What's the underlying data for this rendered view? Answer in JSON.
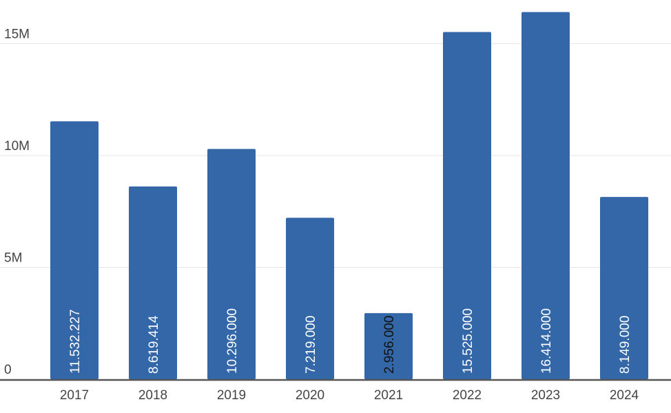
{
  "chart_data": {
    "type": "bar",
    "title": "",
    "xlabel": "",
    "ylabel": "",
    "categories": [
      "2017",
      "2018",
      "2019",
      "2020",
      "2021",
      "2022",
      "2023",
      "2024"
    ],
    "values": [
      11532227,
      8619414,
      10296000,
      7219000,
      2956000,
      15525000,
      16414000,
      8149000
    ],
    "data_labels": [
      "11.532.227",
      "8.619.414",
      "10.296.000",
      "7.219.000",
      "2.956.000",
      "15.525.000",
      "16.414.000",
      "8.149.000"
    ],
    "ylim": [
      0,
      16950000
    ],
    "yticks": [
      0,
      5000000,
      10000000,
      15000000
    ],
    "ytick_labels": [
      "0",
      "5M",
      "10M",
      "15M"
    ],
    "grid": true,
    "legend": "none",
    "colors": {
      "bar": "#3467a8",
      "label_inside": "#ffffff",
      "label_small_bar": "#111111",
      "axis": "#555555",
      "grid": "#e6e6e6",
      "tick_text": "#444444"
    }
  }
}
